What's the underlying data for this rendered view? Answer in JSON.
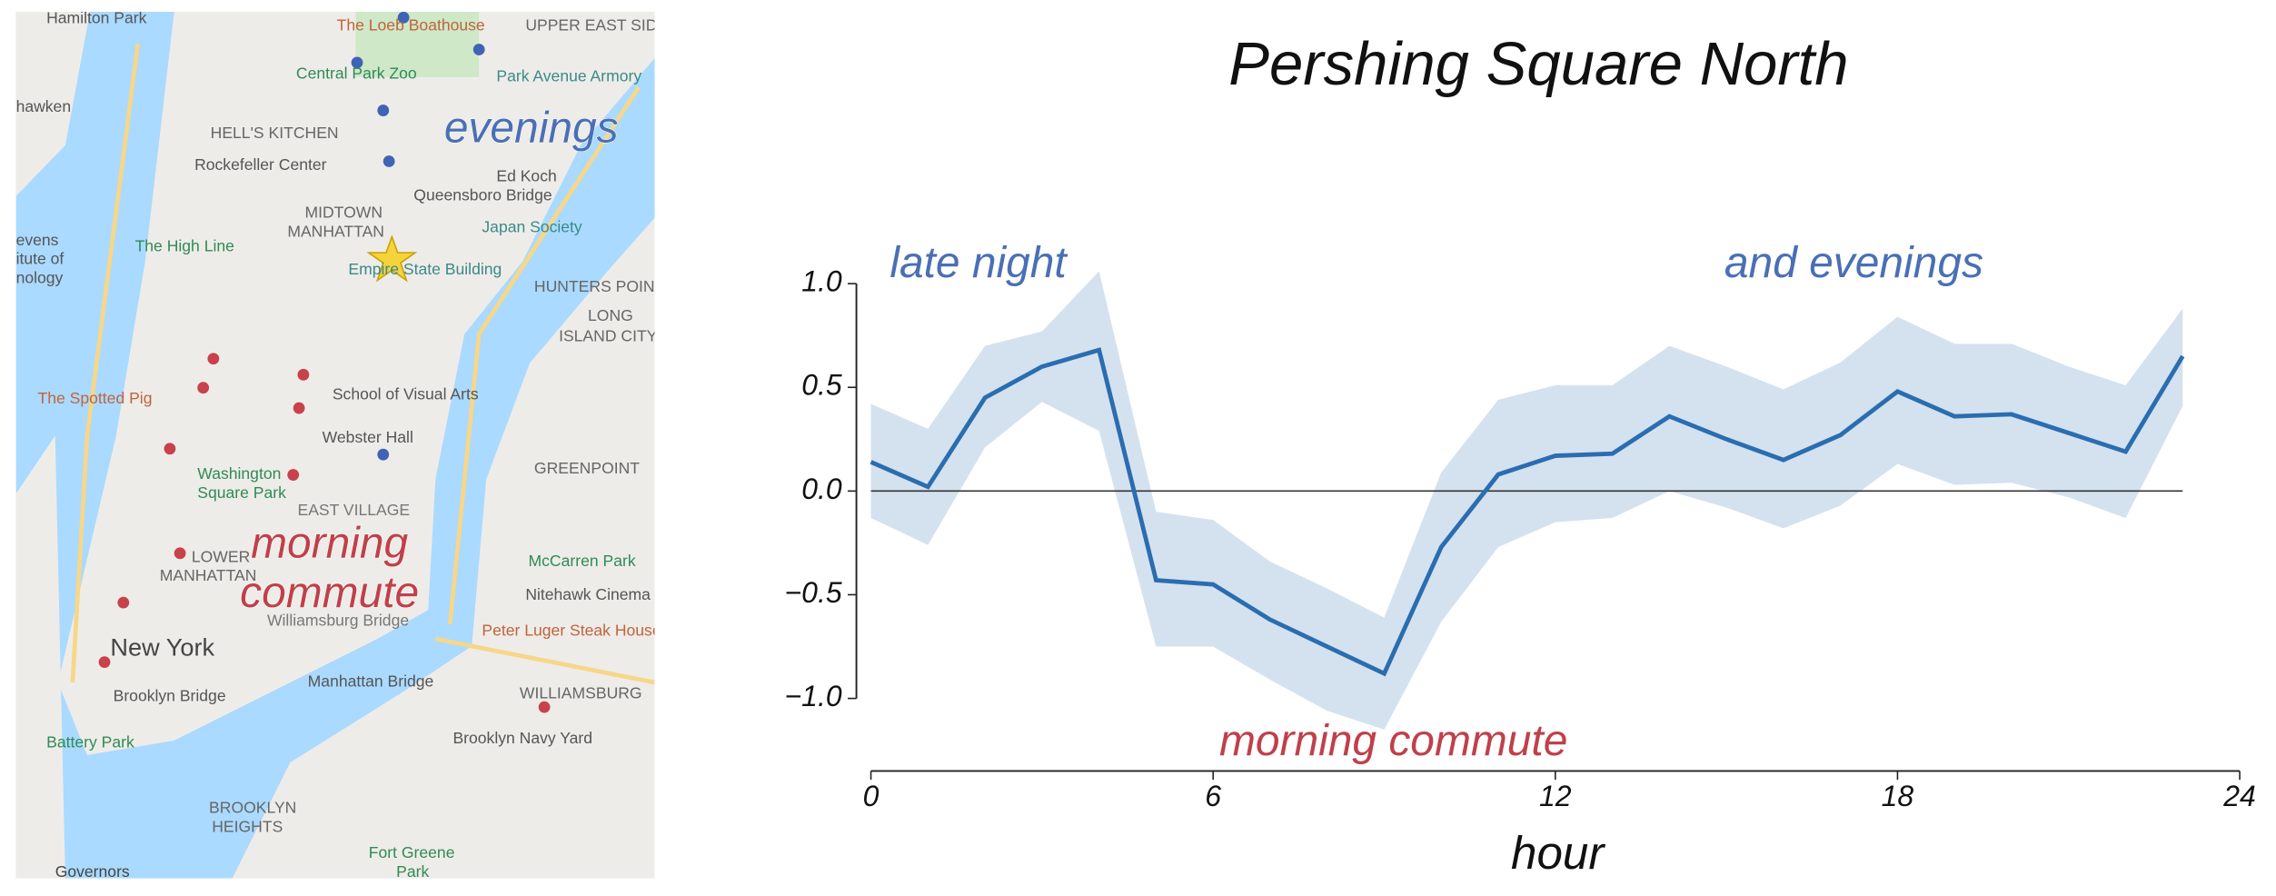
{
  "chart_data": {
    "type": "line",
    "title": "Pershing Square North",
    "x_label": "hour",
    "x": [
      0,
      1,
      2,
      3,
      4,
      5,
      6,
      7,
      8,
      9,
      10,
      11,
      12,
      13,
      14,
      15,
      16,
      17,
      18,
      19,
      20,
      21,
      22,
      23
    ],
    "series": [
      {
        "color": "#2a6db0",
        "band_color": "#d4e2ef",
        "values": [
          0.14,
          0.02,
          0.45,
          0.6,
          0.68,
          -0.43,
          -0.45,
          -0.62,
          -0.75,
          -0.88,
          -0.27,
          0.08,
          0.17,
          0.18,
          0.36,
          0.25,
          0.15,
          0.27,
          0.48,
          0.36,
          0.37,
          0.28,
          0.19,
          0.65
        ],
        "upper": [
          0.42,
          0.3,
          0.7,
          0.77,
          1.06,
          -0.1,
          -0.14,
          -0.34,
          -0.47,
          -0.61,
          0.09,
          0.44,
          0.51,
          0.51,
          0.7,
          0.6,
          0.49,
          0.62,
          0.84,
          0.71,
          0.71,
          0.6,
          0.51,
          0.88
        ],
        "lower": [
          -0.13,
          -0.26,
          0.21,
          0.43,
          0.29,
          -0.75,
          -0.75,
          -0.91,
          -1.06,
          -1.15,
          -0.63,
          -0.27,
          -0.15,
          -0.13,
          0.0,
          -0.08,
          -0.18,
          -0.07,
          0.13,
          0.03,
          0.04,
          -0.03,
          -0.13,
          0.41
        ]
      }
    ],
    "xlim": [
      0,
      24
    ],
    "xticks": [
      0,
      6,
      12,
      18,
      24
    ],
    "ylim": [
      -1.35,
      1.1
    ],
    "yticks": [
      {
        "value": -1,
        "label": "−1.0"
      },
      {
        "value": -0.5,
        "label": "−0.5"
      },
      {
        "value": 0,
        "label": "0.0"
      },
      {
        "value": 0.5,
        "label": "0.5"
      },
      {
        "value": 1,
        "label": "1.0"
      }
    ],
    "annotations": [
      {
        "text": "late night",
        "color": "#4a6fb5"
      },
      {
        "text": "and evenings",
        "color": "#4a6fb5"
      },
      {
        "text": "morning commute",
        "color": "#c0404a"
      }
    ]
  },
  "map": {
    "labels": [
      "Hamilton Park",
      "The Loeb Boathouse",
      "UPPER EAST SIDE",
      "Central Park Zoo",
      "Park Avenue Armory",
      "HELL'S KITCHEN",
      "Rockefeller Center",
      "Ed Koch",
      "Queensboro Bridge",
      "MIDTOWN",
      "MANHATTAN",
      "Japan Society",
      "The High Line",
      "Empire State Building",
      "HUNTERS POINT",
      "LONG",
      "ISLAND CITY",
      "The Spotted Pig",
      "School of Visual Arts",
      "Webster Hall",
      "Washington",
      "Square Park",
      "EAST VILLAGE",
      "GREENPOINT",
      "McCarren Park",
      "LOWER",
      "MANHATTAN",
      "Nitehawk Cinema",
      "New York",
      "Williamsburg Bridge",
      "Peter Luger Steak House",
      "Manhattan Bridge",
      "Brooklyn Bridge",
      "WILLIAMSBURG",
      "Battery Park",
      "Brooklyn Navy Yard",
      "BROOKLYN",
      "HEIGHTS",
      "Fort Greene",
      "Park",
      "Governors",
      "hawken",
      "evens",
      "itute of",
      "nology"
    ],
    "annotations": [
      {
        "text": "evenings",
        "color": "#4a6fb5"
      },
      {
        "text": "morning",
        "color": "#c0404a"
      },
      {
        "text": "commute",
        "color": "#c0404a"
      }
    ]
  }
}
